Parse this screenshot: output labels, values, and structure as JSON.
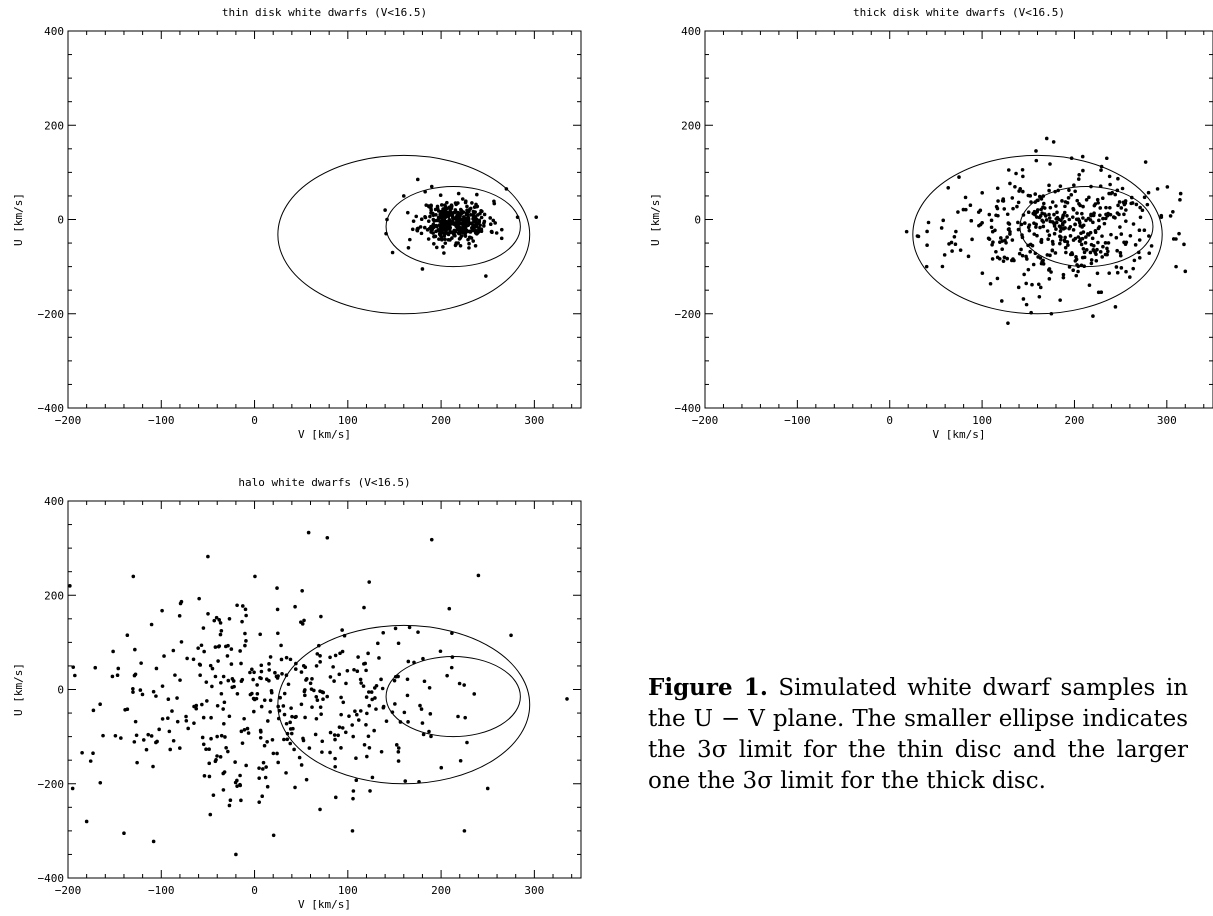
{
  "chart_data": [
    {
      "type": "scatter",
      "title": "thin disk white dwarfs (V<16.5)",
      "xlabel": "V [km/s]",
      "ylabel": "U [km/s]",
      "xlim": [
        -200,
        350
      ],
      "ylim": [
        -400,
        400
      ],
      "xticks": [
        "−200",
        "−100",
        "0",
        "100",
        "200",
        "300"
      ],
      "yticks": [
        "−400",
        "−200",
        "0",
        "200",
        "400"
      ],
      "ellipses": [
        {
          "name": "thin disc 3σ",
          "cx": 213,
          "cy": -15,
          "rx": 72,
          "ry": 85
        },
        {
          "name": "thick disc 3σ",
          "cx": 160,
          "cy": -32,
          "rx": 135,
          "ry": 168
        }
      ],
      "points_spec": {
        "n": 400,
        "cx": 215,
        "cy": -5,
        "sx": 18,
        "sy": 22,
        "seed": 11
      },
      "points": [
        [
          140,
          20
        ],
        [
          141,
          -30
        ],
        [
          148,
          -70
        ],
        [
          160,
          50
        ],
        [
          175,
          85
        ],
        [
          180,
          -105
        ],
        [
          248,
          -120
        ],
        [
          270,
          65
        ],
        [
          282,
          5
        ],
        [
          302,
          5
        ],
        [
          142,
          0
        ],
        [
          165,
          -60
        ],
        [
          190,
          70
        ],
        [
          265,
          -40
        ]
      ]
    },
    {
      "type": "scatter",
      "title": "thick disk white dwarfs (V<16.5)",
      "xlabel": "V [km/s]",
      "ylabel": "U [km/s]",
      "xlim": [
        -200,
        350
      ],
      "ylim": [
        -400,
        400
      ],
      "xticks": [
        "−200",
        "−100",
        "0",
        "100",
        "200",
        "300"
      ],
      "yticks": [
        "−400",
        "−200",
        "0",
        "200",
        "400"
      ],
      "ellipses": [
        {
          "name": "thin disc 3σ",
          "cx": 213,
          "cy": -15,
          "rx": 72,
          "ry": 85
        },
        {
          "name": "thick disc 3σ",
          "cx": 160,
          "cy": -32,
          "rx": 135,
          "ry": 168
        }
      ],
      "points_spec": {
        "n": 450,
        "cx": 180,
        "cy": -20,
        "sx": 55,
        "sy": 60,
        "seed": 23
      },
      "points": [
        [
          170,
          172
        ],
        [
          128,
          -220
        ],
        [
          30,
          -35
        ],
        [
          40,
          -100
        ],
        [
          315,
          55
        ],
        [
          310,
          -100
        ],
        [
          320,
          -110
        ],
        [
          75,
          90
        ],
        [
          290,
          65
        ],
        [
          175,
          -200
        ],
        [
          220,
          -205
        ],
        [
          235,
          130
        ]
      ]
    },
    {
      "type": "scatter",
      "title": "halo white dwarfs (V<16.5)",
      "xlabel": "V [km/s]",
      "ylabel": "U [km/s]",
      "xlim": [
        -200,
        350
      ],
      "ylim": [
        -400,
        400
      ],
      "xticks": [
        "−200",
        "−100",
        "0",
        "100",
        "200",
        "300"
      ],
      "yticks": [
        "−400",
        "−200",
        "0",
        "200",
        "400"
      ],
      "ellipses": [
        {
          "name": "thin disc 3σ",
          "cx": 213,
          "cy": -15,
          "rx": 72,
          "ry": 85
        },
        {
          "name": "thick disc 3σ",
          "cx": 160,
          "cy": -32,
          "rx": 135,
          "ry": 168
        }
      ],
      "points_spec": {
        "n": 430,
        "cx": 20,
        "cy": -15,
        "sx": 90,
        "sy": 105,
        "seed": 37
      },
      "points": [
        [
          -198,
          220
        ],
        [
          -20,
          -350
        ],
        [
          58,
          333
        ],
        [
          78,
          322
        ],
        [
          190,
          318
        ],
        [
          240,
          242
        ],
        [
          225,
          -300
        ],
        [
          335,
          -20
        ],
        [
          275,
          115
        ],
        [
          250,
          -210
        ],
        [
          -140,
          -305
        ],
        [
          -180,
          -280
        ],
        [
          -195,
          -210
        ],
        [
          105,
          -300
        ],
        [
          -130,
          240
        ],
        [
          -50,
          282
        ]
      ]
    }
  ],
  "caption": {
    "label": "Figure 1.",
    "text": " Simulated white dwarf samples in the U − V plane. The smaller ellipse indicates the 3σ limit for the thin disc and the larger one the 3σ limit for the thick disc."
  }
}
